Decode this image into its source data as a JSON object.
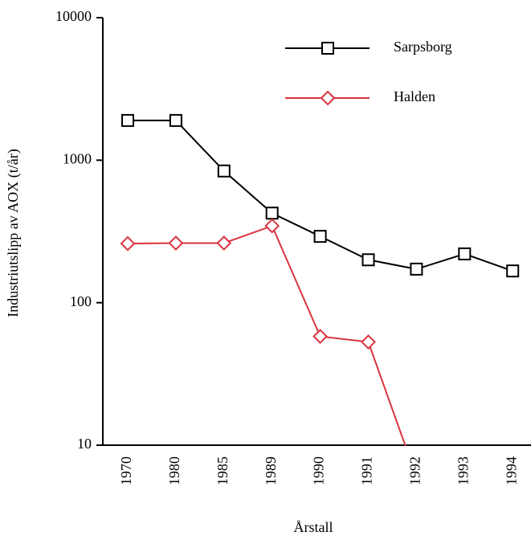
{
  "chart_data": {
    "type": "line",
    "xlabel": "Årstall",
    "ylabel": "Industriutslipp av AOX (t/år)",
    "categories": [
      "1970",
      "1980",
      "1985",
      "1989",
      "1990",
      "1991",
      "1992",
      "1993",
      "1994"
    ],
    "series": [
      {
        "name": "Sarpsborg",
        "color": "#000000",
        "marker": "square",
        "values": [
          1900,
          1900,
          840,
          425,
          292,
          200,
          172,
          220,
          167
        ]
      },
      {
        "name": "Halden",
        "color": "#d9343f",
        "marker": "diamond",
        "values": [
          260,
          262,
          262,
          346,
          58,
          53,
          6,
          null,
          null
        ]
      }
    ],
    "ylim": [
      10,
      10000
    ],
    "yticks": [
      10,
      100,
      1000,
      10000
    ],
    "log_y": true,
    "grid": false,
    "legend": "upper right"
  }
}
